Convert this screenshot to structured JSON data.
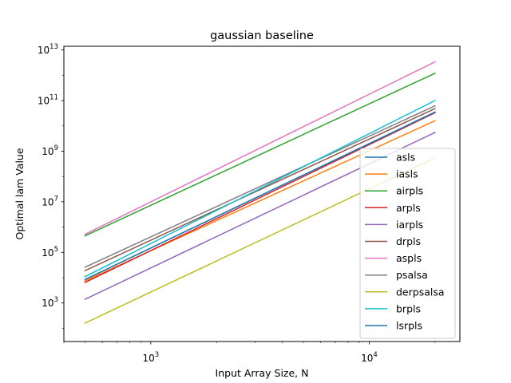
{
  "chart_data": {
    "type": "line",
    "title": "gaussian baseline",
    "xlabel": "Input Array Size, N",
    "ylabel": "Optimal lam Value",
    "xscale": "log",
    "yscale": "log",
    "xlim": [
      400,
      26000
    ],
    "ylim": [
      30.0,
      14000000000000.0
    ],
    "x_ticks": [
      {
        "value": 1000,
        "base": "10",
        "exp": "3"
      },
      {
        "value": 10000,
        "base": "10",
        "exp": "4"
      }
    ],
    "y_ticks": [
      {
        "value": 1000.0,
        "base": "10",
        "exp": "3"
      },
      {
        "value": 100000.0,
        "base": "10",
        "exp": "5"
      },
      {
        "value": 10000000.0,
        "base": "10",
        "exp": "7"
      },
      {
        "value": 1000000000.0,
        "base": "10",
        "exp": "9"
      },
      {
        "value": 100000000000.0,
        "base": "10",
        "exp": "11"
      },
      {
        "value": 10000000000000.0,
        "base": "10",
        "exp": "13"
      }
    ],
    "grid": false,
    "legend_position": "lower-right",
    "x": [
      500,
      20000
    ],
    "series": [
      {
        "name": "asls",
        "color": "#1f77b4",
        "values": [
          8500.0,
          35000000000.0
        ]
      },
      {
        "name": "iasls",
        "color": "#ff7f0e",
        "values": [
          7500.0,
          16000000000.0
        ]
      },
      {
        "name": "airpls",
        "color": "#2ca02c",
        "values": [
          450000.0,
          1200000000000.0
        ]
      },
      {
        "name": "arpls",
        "color": "#d62728",
        "values": [
          6500.0,
          33000000000.0
        ]
      },
      {
        "name": "iarpls",
        "color": "#9467bd",
        "values": [
          1400.0,
          5500000000.0
        ]
      },
      {
        "name": "drpls",
        "color": "#8c564b",
        "values": [
          19000.0,
          48000000000.0
        ]
      },
      {
        "name": "aspls",
        "color": "#e377c2",
        "values": [
          520000.0,
          3400000000000.0
        ]
      },
      {
        "name": "psalsa",
        "color": "#7f7f7f",
        "values": [
          26000.0,
          62000000000.0
        ]
      },
      {
        "name": "derpsalsa",
        "color": "#bcbd22",
        "values": [
          160.0,
          550000000.0
        ]
      },
      {
        "name": "brpls",
        "color": "#17becf",
        "values": [
          11000.0,
          100000000000.0
        ]
      },
      {
        "name": "lsrpls",
        "color": "#1f77b4",
        "values": [
          8500.0,
          35000000000.0
        ]
      }
    ]
  }
}
